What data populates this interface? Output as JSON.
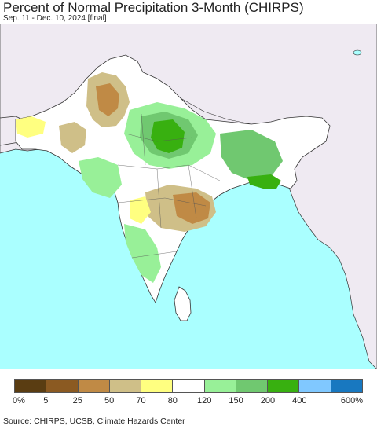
{
  "title": "Percent of Normal Precipitation 3-Month (CHIRPS)",
  "subtitle": "Sep. 11 - Dec. 10, 2024 [final]",
  "legend": {
    "colors": [
      "#5a3d12",
      "#8b5a22",
      "#c08a45",
      "#cfbf88",
      "#ffff80",
      "#ffffff",
      "#98f098",
      "#70c870",
      "#38b010",
      "#80c8ff",
      "#1878c0"
    ],
    "labels": [
      "0%",
      "5",
      "25",
      "50",
      "70",
      "80",
      "120",
      "150",
      "200",
      "400",
      "600%"
    ]
  },
  "source": "Source: CHIRPS, UCSB, Climate Hazards Center",
  "map_colors": {
    "ocean": "#aaffff",
    "land_outside": "#efeaf2",
    "border": "#222222"
  }
}
